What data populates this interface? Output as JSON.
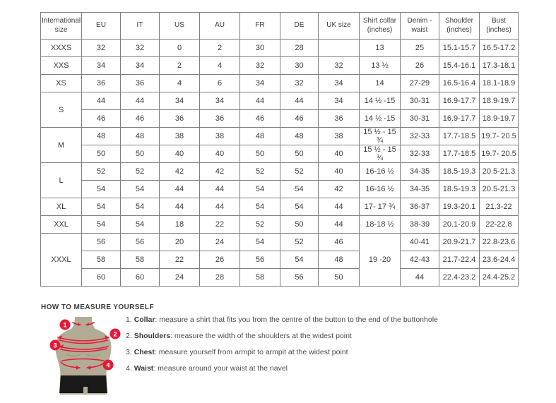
{
  "size_chart": {
    "headers": [
      "International size",
      "EU",
      "IT",
      "US",
      "AU",
      "FR",
      "DE",
      "UK size",
      "Shirt collar (inches)",
      "Denim - waist",
      "Shoulder (inches)",
      "Bust (inches)"
    ],
    "groups": [
      {
        "label": "XXXS",
        "rows": [
          [
            "32",
            "32",
            "0",
            "2",
            "30",
            "28",
            "",
            "13",
            "25",
            "15.1-15.7",
            "16.5-17.2"
          ]
        ]
      },
      {
        "label": "XXS",
        "rows": [
          [
            "34",
            "34",
            "2",
            "4",
            "32",
            "30",
            "32",
            "13 ½",
            "26",
            "15.4-16.1",
            "17.3-18.1"
          ]
        ]
      },
      {
        "label": "XS",
        "rows": [
          [
            "36",
            "36",
            "4",
            "6",
            "34",
            "32",
            "34",
            "14",
            "27-29",
            "16.5-16.4",
            "18.1-18.9"
          ]
        ]
      },
      {
        "label": "S",
        "rows": [
          [
            "44",
            "44",
            "34",
            "34",
            "44",
            "44",
            "34",
            "14 ½ -15",
            "30-31",
            "16.9-17.7",
            "18.9-19.7"
          ],
          [
            "46",
            "46",
            "36",
            "36",
            "46",
            "46",
            "36",
            "14 ½ -15",
            "30-31",
            "16.9-17.7",
            "18.9-19.7"
          ]
        ]
      },
      {
        "label": "M",
        "rows": [
          [
            "48",
            "48",
            "38",
            "38",
            "48",
            "48",
            "38",
            "15 ½ - 15 ¾",
            "32-33",
            "17.7-18.5",
            "19.7- 20.5"
          ],
          [
            "50",
            "50",
            "40",
            "40",
            "50",
            "50",
            "40",
            "15 ½ - 15 ¾",
            "32-33",
            "17.7-18.5",
            "19.7- 20.5"
          ]
        ]
      },
      {
        "label": "L",
        "rows": [
          [
            "52",
            "52",
            "42",
            "42",
            "52",
            "52",
            "40",
            "16-16 ½",
            "34-35",
            "18.5-19.3",
            "20.5-21.3"
          ],
          [
            "54",
            "54",
            "44",
            "44",
            "54",
            "54",
            "42",
            "16-16 ½",
            "34-35",
            "18.5-19.3",
            "20.5-21.3"
          ]
        ]
      },
      {
        "label": "XL",
        "rows": [
          [
            "54",
            "54",
            "44",
            "44",
            "54",
            "54",
            "44",
            "17- 17 ¾",
            "36-37",
            "19.3-20.1",
            "21.3-22"
          ]
        ]
      },
      {
        "label": "XXL",
        "rows": [
          [
            "54",
            "54",
            "18",
            "22",
            "52",
            "50",
            "44",
            "18-18 ½",
            "38-39",
            "20.1-20.9",
            "22-22.8"
          ]
        ]
      },
      {
        "label": "XXXL",
        "rows": [
          [
            "56",
            "56",
            "20",
            "24",
            "54",
            "52",
            "46",
            {
              "v": "19 -20",
              "span": 3
            },
            "40-41",
            "20.9-21.7",
            "22.8-23.6"
          ],
          [
            "58",
            "58",
            "22",
            "26",
            "56",
            "54",
            "48",
            null,
            "42-43",
            "21.7-22.4",
            "23.6-24.4"
          ],
          [
            "60",
            "60",
            "24",
            "28",
            "58",
            "56",
            "50",
            null,
            "44",
            "22.4-23.2",
            "24.4-25.2"
          ]
        ]
      }
    ]
  },
  "measure_guide": {
    "title": "HOW TO MEASURE YOURSELF",
    "steps": [
      {
        "num": "1.",
        "term": "Collar",
        "text": ": measure a shirt that fits you from the centre of the button to the end of the buttonhole"
      },
      {
        "num": "2.",
        "term": "Shoulders",
        "text": ": measure the width of the shoulders at the widest point"
      },
      {
        "num": "3.",
        "term": "Chest",
        "text": ": measure yourself from armpit to armpit at the widest point"
      },
      {
        "num": "4.",
        "term": "Waist",
        "text": ": measure around your waist at the navel"
      }
    ],
    "figure_markers": [
      "1",
      "2",
      "3",
      "4"
    ],
    "colors": {
      "accent_red": "#e51937",
      "mannequin": "#b2ac95",
      "shorts": "#191919",
      "table_border": "#7f7f7f",
      "text": "#3b3b3b"
    }
  }
}
